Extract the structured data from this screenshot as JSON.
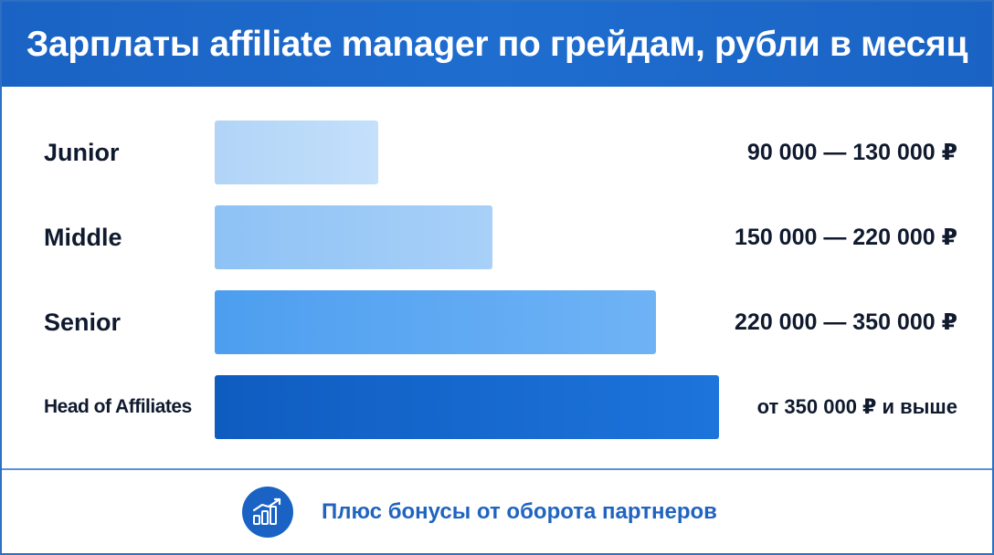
{
  "chart_data": {
    "type": "bar",
    "orientation": "horizontal",
    "title": "Зарплаты affiliate manager по грейдам, рубли в месяц",
    "categories": [
      "Junior",
      "Middle",
      "Senior",
      "Head of Affiliates"
    ],
    "ranges": [
      "90 000 — 130 000 ₽",
      "150 000 — 220 000 ₽",
      "220 000 — 350 000 ₽",
      "от 350 000 ₽ и выше"
    ],
    "values": [
      130000,
      220000,
      350000,
      400000
    ],
    "colors": [
      [
        "#b1d4f7",
        "#c4e0fb"
      ],
      [
        "#8ec2f5",
        "#a8d0f8"
      ],
      [
        "#4d9ef0",
        "#6fb3f5"
      ],
      [
        "#0f5cc0",
        "#1d74db"
      ]
    ],
    "grid": false
  },
  "footer": {
    "text": "Плюс бонусы от оборота партнеров",
    "icon": "growth-chart-icon"
  }
}
